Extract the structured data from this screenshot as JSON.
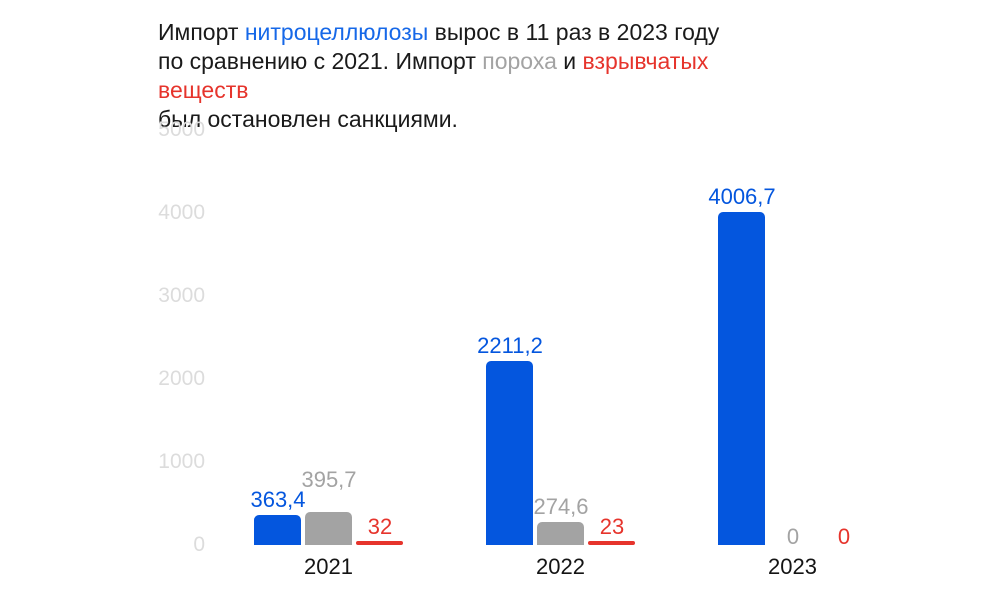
{
  "title": {
    "lines": [
      {
        "segments": [
          {
            "text": "Импорт ",
            "color_key": "black"
          },
          {
            "text": "нитроцеллюлозы",
            "color_key": "blue"
          },
          {
            "text": " вырос в 11 раз в 2023 году",
            "color_key": "black"
          }
        ]
      },
      {
        "segments": [
          {
            "text": "по сравнению с 2021. Импорт ",
            "color_key": "black"
          },
          {
            "text": "пороха",
            "color_key": "gray"
          },
          {
            "text": " и ",
            "color_key": "black"
          },
          {
            "text": "взрывчатых веществ",
            "color_key": "red"
          }
        ]
      },
      {
        "segments": [
          {
            "text": "был остановлен санкциями.",
            "color_key": "black"
          }
        ]
      }
    ]
  },
  "colors": {
    "background": "#ffffff",
    "blue": "#0456de",
    "gray": "#a3a3a3",
    "red": "#e6342c",
    "title_blue": "#1668e8",
    "text_black": "#1a1a1a",
    "axis_tick": "#dcdcdc"
  },
  "chart_data": {
    "type": "bar",
    "categories": [
      "2021",
      "2022",
      "2023"
    ],
    "series": [
      {
        "name": "нитроцеллюлоза",
        "color": "#0456de",
        "values": [
          363.4,
          2211.2,
          4006.7
        ],
        "value_labels": [
          "363,4",
          "2211,2",
          "4006,7"
        ]
      },
      {
        "name": "порох",
        "color": "#a3a3a3",
        "values": [
          395.7,
          274.6,
          0
        ],
        "value_labels": [
          "395,7",
          "274,6",
          "0"
        ]
      },
      {
        "name": "взрывчатые вещества",
        "color": "#e6342c",
        "values": [
          32,
          23,
          0
        ],
        "value_labels": [
          "32",
          "23",
          "0"
        ]
      }
    ],
    "title": "Импорт нитроцеллюлозы вырос в 11 раз в 2023 году по сравнению с 2021. Импорт пороха и взрывчатых веществ был остановлен санкциями.",
    "xlabel": "",
    "ylabel": "",
    "ylim": [
      0,
      5000
    ],
    "yticks": [
      "5000",
      "4000",
      "3000",
      "2000",
      "1000",
      "0"
    ],
    "grid": false,
    "legend": false
  }
}
